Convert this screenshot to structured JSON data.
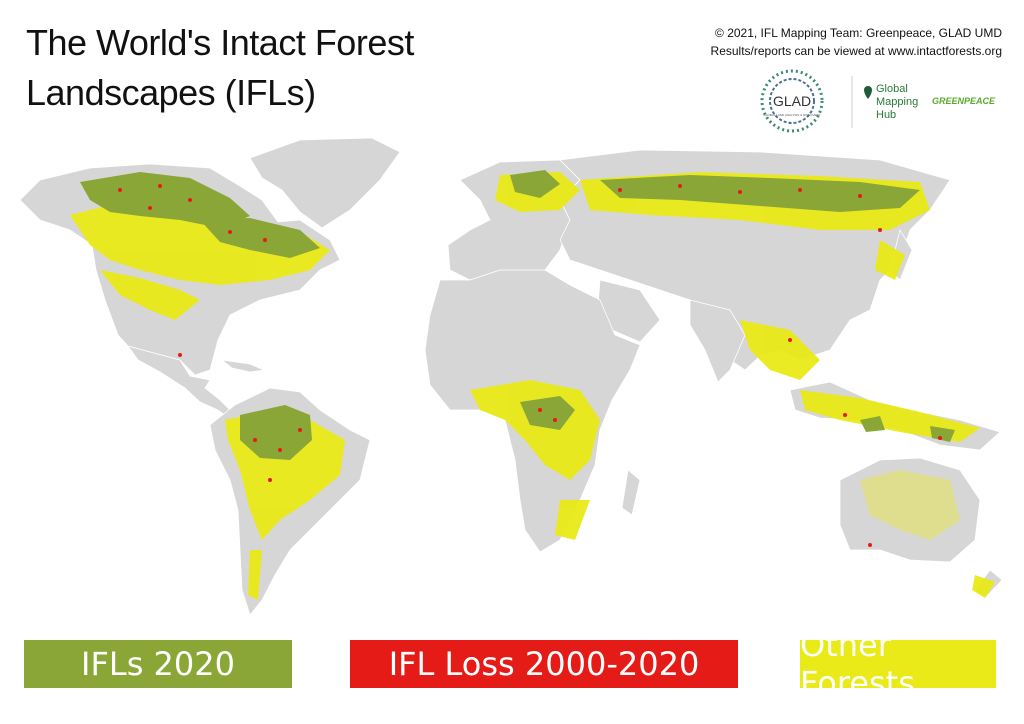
{
  "title": {
    "line1": "The World's Intact Forest",
    "line2": "Landscapes (IFLs)"
  },
  "credits": {
    "line1": "© 2021, IFL Mapping Team: Greenpeace, GLAD UMD",
    "line2": "Results/reports can be viewed at www.intactforests.org"
  },
  "logos": {
    "glad": "GLAD",
    "glad_sub": "GLOBAL LAND ANALYSIS & DISCOVERY",
    "hub_line1": "Global",
    "hub_line2": "Mapping",
    "hub_line3": "Hub",
    "greenpeace": "GREENPEACE"
  },
  "legend": {
    "ifl": {
      "label": "IFLs 2020",
      "color": "#8aa636"
    },
    "loss": {
      "label": "IFL Loss 2000-2020",
      "color": "#e41b16"
    },
    "other": {
      "label": "Other Forests",
      "color": "#eaea18"
    }
  },
  "colors": {
    "land": "#d6d6d6",
    "borders": "#ffffff",
    "ocean": "#ffffff"
  }
}
